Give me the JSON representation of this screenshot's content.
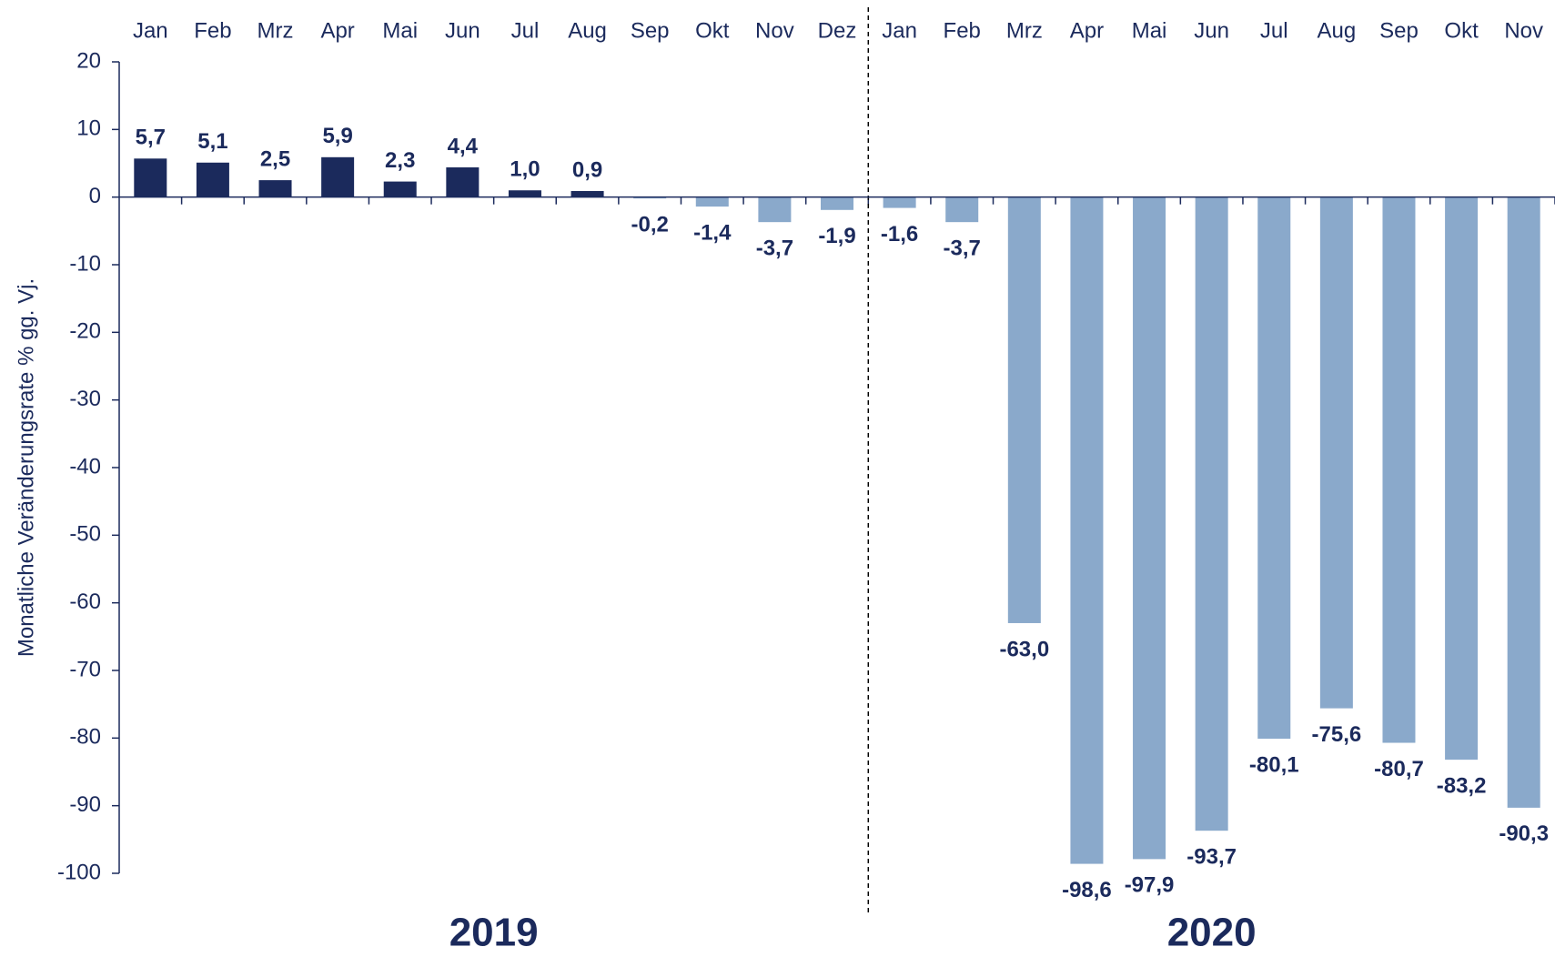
{
  "chart_data": {
    "type": "bar",
    "y_label": "Monatliche Veränderungsrate  % gg. Vj.",
    "ylim": [
      -100,
      20
    ],
    "yticks": [
      -100,
      -90,
      -80,
      -70,
      -60,
      -50,
      -40,
      -30,
      -20,
      -10,
      0,
      10,
      20
    ],
    "colors": {
      "positive": "#1b2a5c",
      "negative": "#8aa9cb"
    },
    "groups": [
      {
        "name": "2019",
        "categories": [
          "Jan",
          "Feb",
          "Mrz",
          "Apr",
          "Mai",
          "Jun",
          "Jul",
          "Aug",
          "Sep",
          "Okt",
          "Nov",
          "Dez"
        ],
        "values": [
          5.7,
          5.1,
          2.5,
          5.9,
          2.3,
          4.4,
          1.0,
          0.9,
          -0.2,
          -1.4,
          -3.7,
          -1.9
        ],
        "value_labels": [
          "5,7",
          "5,1",
          "2,5",
          "5,9",
          "2,3",
          "4,4",
          "1,0",
          "0,9",
          "-0,2",
          "-1,4",
          "-3,7",
          "-1,9"
        ]
      },
      {
        "name": "2020",
        "categories": [
          "Jan",
          "Feb",
          "Mrz",
          "Apr",
          "Mai",
          "Jun",
          "Jul",
          "Aug",
          "Sep",
          "Okt",
          "Nov"
        ],
        "values": [
          -1.6,
          -3.7,
          -63.0,
          -98.6,
          -97.9,
          -93.7,
          -80.1,
          -75.6,
          -80.7,
          -83.2,
          -90.3
        ],
        "value_labels": [
          "-1,6",
          "-3,7",
          "-63,0",
          "-98,6",
          "-97,9",
          "-93,7",
          "-80,1",
          "-75,6",
          "-80,7",
          "-83,2",
          "-90,3"
        ]
      }
    ]
  }
}
